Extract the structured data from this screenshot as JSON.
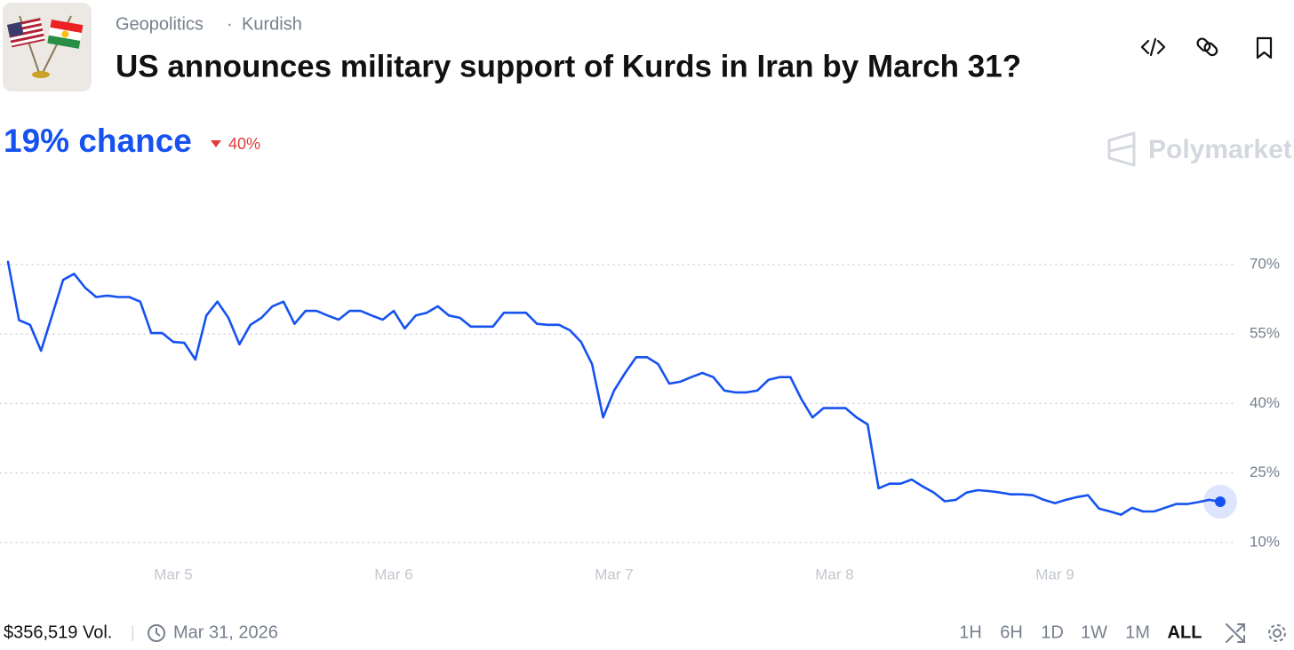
{
  "header": {
    "category": "Geopolitics",
    "separator": "·",
    "subcategory": "Kurdish",
    "title": "US announces military support of Kurds in Iran by March 31?"
  },
  "headline": {
    "chance": "19% chance",
    "change": "40%"
  },
  "brand": "Polymarket",
  "chart_data": {
    "type": "line",
    "categories": [
      null,
      null,
      null,
      null,
      null,
      null,
      null,
      null,
      null,
      null,
      null,
      null,
      null,
      null,
      null,
      "Mar 5",
      null,
      null,
      null,
      null,
      null,
      null,
      null,
      null,
      null,
      null,
      null,
      null,
      null,
      null,
      null,
      null,
      null,
      null,
      null,
      "Mar 6",
      null,
      null,
      null,
      null,
      null,
      null,
      null,
      null,
      null,
      null,
      null,
      null,
      null,
      null,
      null,
      null,
      null,
      null,
      null,
      "Mar 7",
      null,
      null,
      null,
      null,
      null,
      null,
      null,
      null,
      null,
      null,
      null,
      null,
      null,
      null,
      null,
      null,
      null,
      null,
      null,
      "Mar 8",
      null,
      null,
      null,
      null,
      null,
      null,
      null,
      null,
      null,
      null,
      null,
      null,
      null,
      null,
      null,
      null,
      null,
      null,
      null,
      "Mar 9",
      null,
      null,
      null,
      null,
      null,
      null,
      null,
      null,
      null,
      null,
      null,
      null,
      null,
      null,
      null
    ],
    "series": [
      {
        "color": "#1652f0",
        "values": [
          70.6,
          58,
          57,
          51.4,
          59,
          66.7,
          68,
          65,
          63,
          63.3,
          63,
          63,
          62,
          55.2,
          55.2,
          53.3,
          53.1,
          49.5,
          59,
          62,
          58.5,
          52.8,
          57,
          58.5,
          61,
          62,
          57.2,
          60,
          60,
          59,
          58.1,
          60,
          60,
          59,
          58.1,
          60,
          56.2,
          59,
          59.6,
          61,
          59,
          58.5,
          56.6,
          56.6,
          56.6,
          59.6,
          59.6,
          59.6,
          57.2,
          57,
          57,
          55.8,
          53.3,
          48.5,
          37,
          42.8,
          46.6,
          50,
          50,
          48.5,
          44.3,
          44.7,
          45.7,
          46.6,
          45.7,
          42.8,
          42.4,
          42.4,
          42.8,
          45.1,
          45.7,
          45.7,
          40.9,
          37,
          39,
          39,
          39,
          37,
          35.5,
          21.7,
          22.7,
          22.7,
          23.6,
          22.1,
          20.8,
          18.9,
          19.2,
          20.8,
          21.3,
          21.1,
          20.8,
          20.4,
          20.4,
          20.2,
          19.2,
          18.5,
          19.2,
          19.8,
          20.2,
          17.3,
          16.7,
          16,
          17.5,
          16.7,
          16.7,
          17.5,
          18.3,
          18.3,
          18.7,
          19.2,
          18.8
        ]
      }
    ],
    "ylim": [
      5,
      85
    ],
    "yticks": [
      {
        "value": 10,
        "label": "10%"
      },
      {
        "value": 25,
        "label": "25%"
      },
      {
        "value": 40,
        "label": "40%"
      },
      {
        "value": 55,
        "label": "55%"
      },
      {
        "value": 70,
        "label": "70%"
      }
    ],
    "grid": true
  },
  "footer": {
    "volume": "$356,519 Vol.",
    "divider": "|",
    "end_date": "Mar 31, 2026",
    "ranges": [
      "1H",
      "6H",
      "1D",
      "1W",
      "1M",
      "ALL"
    ],
    "active_range": "ALL"
  }
}
